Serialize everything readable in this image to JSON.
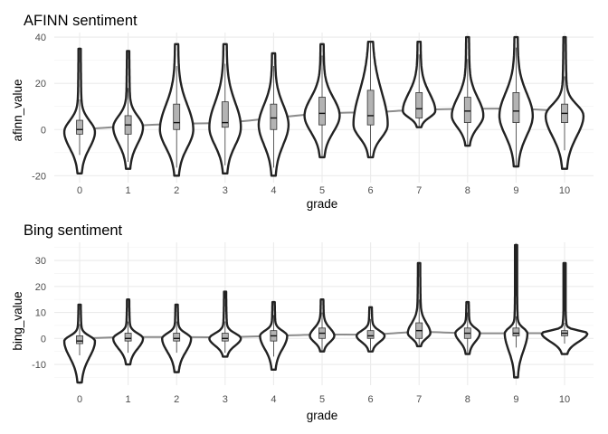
{
  "chart_data": [
    {
      "type": "violin",
      "title": "AFINN sentiment",
      "xlabel": "grade",
      "ylabel": "afinn_value",
      "categories": [
        "0",
        "1",
        "2",
        "3",
        "4",
        "5",
        "6",
        "7",
        "8",
        "9",
        "10"
      ],
      "ylim": [
        -23,
        42
      ],
      "yticks": [
        -20,
        0,
        20,
        40
      ],
      "ytick_labels": [
        "-20",
        "0",
        "20",
        "40"
      ],
      "grid": true,
      "series": [
        {
          "category": "0",
          "min": -19,
          "q1": -2,
          "median": 0,
          "q3": 4,
          "max": 35,
          "mode": -1,
          "width": 0.64
        },
        {
          "category": "1",
          "min": -17,
          "q1": -2,
          "median": 2,
          "q3": 6,
          "max": 34,
          "mode": 1,
          "width": 0.62
        },
        {
          "category": "2",
          "min": -20,
          "q1": 0,
          "median": 3,
          "q3": 11,
          "max": 37,
          "mode": 0,
          "width": 0.7
        },
        {
          "category": "3",
          "min": -19,
          "q1": 1,
          "median": 3,
          "q3": 12,
          "max": 37,
          "mode": 1,
          "width": 0.66
        },
        {
          "category": "4",
          "min": -20,
          "q1": 0,
          "median": 5,
          "q3": 11,
          "max": 33,
          "mode": 2,
          "width": 0.62
        },
        {
          "category": "5",
          "min": -12,
          "q1": 2,
          "median": 7,
          "q3": 14,
          "max": 37,
          "mode": 6,
          "width": 0.74
        },
        {
          "category": "6",
          "min": -12,
          "q1": 2,
          "median": 6,
          "q3": 17,
          "max": 38,
          "mode": 2,
          "width": 0.72
        },
        {
          "category": "7",
          "min": 1,
          "q1": 5,
          "median": 9,
          "q3": 16,
          "max": 38,
          "mode": 8,
          "width": 0.68
        },
        {
          "category": "8",
          "min": -7,
          "q1": 3,
          "median": 8,
          "q3": 14,
          "max": 40,
          "mode": 6,
          "width": 0.66
        },
        {
          "category": "9",
          "min": -16,
          "q1": 3,
          "median": 8,
          "q3": 16,
          "max": 40,
          "mode": 6,
          "width": 0.7
        },
        {
          "category": "10",
          "min": -17,
          "q1": 3,
          "median": 7,
          "q3": 11,
          "max": 40,
          "mode": 6,
          "width": 0.8
        }
      ],
      "trend": [
        0,
        1.5,
        2.5,
        3,
        5,
        7,
        7.5,
        8.5,
        9,
        9,
        8
      ]
    },
    {
      "type": "violin",
      "title": "Bing sentiment",
      "xlabel": "grade",
      "ylabel": "bing_value",
      "categories": [
        "0",
        "1",
        "2",
        "3",
        "4",
        "5",
        "6",
        "7",
        "8",
        "9",
        "10"
      ],
      "ylim": [
        -18,
        37
      ],
      "yticks": [
        -10,
        0,
        10,
        20,
        30
      ],
      "ytick_labels": [
        "-10",
        "0",
        "10",
        "20",
        "30"
      ],
      "grid": true,
      "series": [
        {
          "category": "0",
          "min": -17,
          "q1": -2,
          "median": -1,
          "q3": 1,
          "max": 13,
          "mode": -1,
          "width": 0.64
        },
        {
          "category": "1",
          "min": -10,
          "q1": -1,
          "median": 0,
          "q3": 2,
          "max": 15,
          "mode": 0,
          "width": 0.62
        },
        {
          "category": "2",
          "min": -13,
          "q1": -1,
          "median": 0,
          "q3": 2,
          "max": 13,
          "mode": 0,
          "width": 0.6
        },
        {
          "category": "3",
          "min": -7,
          "q1": -1,
          "median": 0,
          "q3": 2,
          "max": 18,
          "mode": 0,
          "width": 0.66
        },
        {
          "category": "4",
          "min": -12,
          "q1": -1,
          "median": 1,
          "q3": 3,
          "max": 14,
          "mode": 1,
          "width": 0.56
        },
        {
          "category": "5",
          "min": -5,
          "q1": 0,
          "median": 2,
          "q3": 4,
          "max": 15,
          "mode": 1,
          "width": 0.5
        },
        {
          "category": "6",
          "min": -5,
          "q1": 0,
          "median": 1,
          "q3": 3,
          "max": 12,
          "mode": 1,
          "width": 0.58
        },
        {
          "category": "7",
          "min": -3,
          "q1": 0,
          "median": 3,
          "q3": 6,
          "max": 29,
          "mode": 2,
          "width": 0.46
        },
        {
          "category": "8",
          "min": -6,
          "q1": 0,
          "median": 2,
          "q3": 4,
          "max": 14,
          "mode": 2,
          "width": 0.5
        },
        {
          "category": "9",
          "min": -15,
          "q1": 1,
          "median": 2,
          "q3": 4,
          "max": 36,
          "mode": 2,
          "width": 0.46
        },
        {
          "category": "10",
          "min": -6,
          "q1": 1,
          "median": 2,
          "q3": 3,
          "max": 29,
          "mode": 2,
          "width": 0.98
        }
      ],
      "trend": [
        0,
        0.5,
        0.5,
        0.5,
        1,
        1.5,
        1.5,
        2.5,
        2,
        2,
        2
      ]
    }
  ]
}
